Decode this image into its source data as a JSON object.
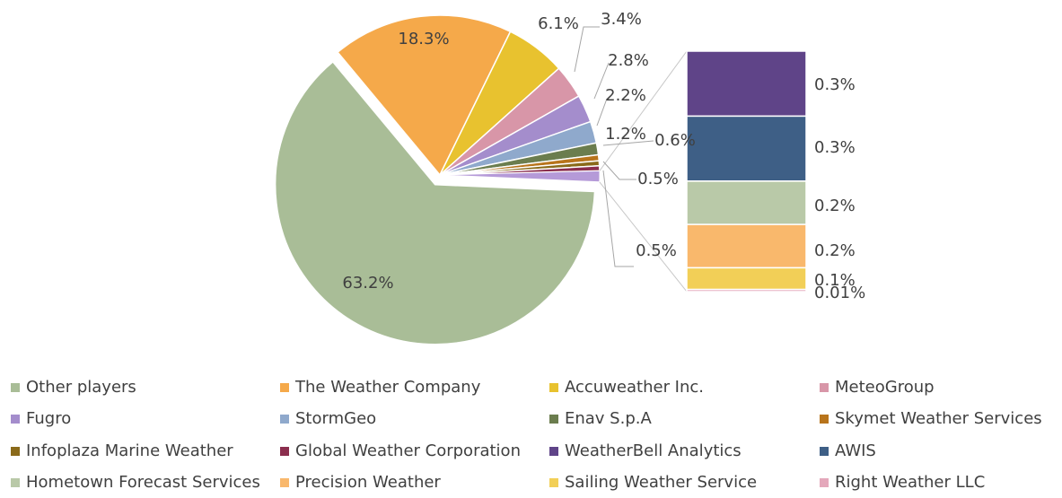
{
  "chart_data": {
    "type": "bar_of_pie",
    "categories": [
      "Other players",
      "The Weather Company",
      "Accuweather Inc.",
      "MeteoGroup",
      "Fugro",
      "StormGeo",
      "Enav S.p.A",
      "Skymet Weather Services",
      "Infoplaza Marine Weather",
      "Global Weather Corporation",
      "WeatherBell Analytics",
      "AWIS",
      "Hometown Forecast Services",
      "Precision Weather",
      "Sailing Weather Service",
      "Right Weather LLC"
    ],
    "values": [
      63.2,
      18.3,
      6.1,
      3.4,
      2.8,
      2.2,
      1.2,
      0.6,
      0.5,
      0.5,
      0.3,
      0.3,
      0.2,
      0.2,
      0.1,
      0.01
    ],
    "value_labels": [
      "63.2%",
      "18.3%",
      "6.1%",
      "3.4%",
      "2.8%",
      "2.2%",
      "1.2%",
      "0.6%",
      "0.5%",
      "0.5%",
      "0.3%",
      "0.3%",
      "0.2%",
      "0.2%",
      "0.1%",
      "0.01%"
    ],
    "colors": [
      "#a9bd97",
      "#f5a94a",
      "#e8c22f",
      "#d896a8",
      "#a48dcc",
      "#8fa9cc",
      "#6b7d4e",
      "#b8741b",
      "#8a6a1a",
      "#8b2e4e",
      "#5f4488",
      "#3e5f86",
      "#b9c9a8",
      "#f9b86c",
      "#f2cf57",
      "#e4a8bb"
    ]
  }
}
